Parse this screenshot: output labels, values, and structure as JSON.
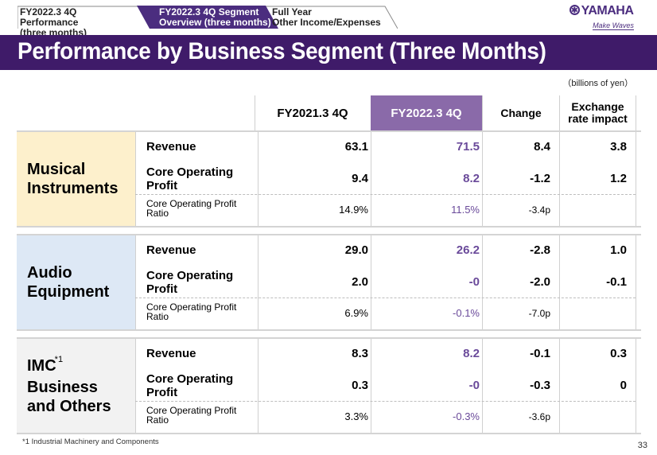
{
  "nav_tabs": [
    {
      "line1": "FY2022.3 4Q Performance",
      "line2": "(three months)",
      "active": false
    },
    {
      "line1": "FY2022.3 4Q Segment",
      "line2": "Overview (three months)",
      "active": true
    },
    {
      "line1": "Full Year",
      "line2": "Other Income/Expenses",
      "active": false
    }
  ],
  "logo": {
    "name": "YAMAHA",
    "tagline": "Make Waves",
    "icon": "tuning-fork-emblem-icon"
  },
  "title": "Performance by Business Segment (Three Months)",
  "unit": "（billions of yen）",
  "columns": {
    "prev": "FY2021.3 4Q",
    "curr": "FY2022.3 4Q",
    "change": "Change",
    "fx_line1": "Exchange",
    "fx_line2": "rate impact"
  },
  "row_labels": {
    "revenue": "Revenue",
    "cop_line1": "Core Operating",
    "cop_line2": "Profit",
    "ratio_line1": "Core Operating Profit",
    "ratio_line2": "Ratio"
  },
  "segments": [
    {
      "name_line1": "Musical",
      "name_line2": "Instruments",
      "footnote_mark": "",
      "bg": "#fdf0cc",
      "revenue": {
        "prev": "63.1",
        "curr": "71.5",
        "change": "8.4",
        "fx": "3.8"
      },
      "cop": {
        "prev": "9.4",
        "curr": "8.2",
        "change": "-1.2",
        "fx": "1.2"
      },
      "ratio": {
        "prev": "14.9%",
        "curr": "11.5%",
        "change": "-3.4p",
        "fx": ""
      }
    },
    {
      "name_line1": "Audio",
      "name_line2": "Equipment",
      "footnote_mark": "",
      "bg": "#dde8f5",
      "revenue": {
        "prev": "29.0",
        "curr": "26.2",
        "change": "-2.8",
        "fx": "1.0"
      },
      "cop": {
        "prev": "2.0",
        "curr": "-0",
        "change": "-2.0",
        "fx": "-0.1"
      },
      "ratio": {
        "prev": "6.9%",
        "curr": "-0.1%",
        "change": "-7.0p",
        "fx": ""
      }
    },
    {
      "name_line1": "IMC Business",
      "name_line2": "and Others",
      "footnote_mark": "*1",
      "bg": "#f2f2f2",
      "revenue": {
        "prev": "8.3",
        "curr": "8.2",
        "change": "-0.1",
        "fx": "0.3"
      },
      "cop": {
        "prev": "0.3",
        "curr": "-0",
        "change": "-0.3",
        "fx": "0"
      },
      "ratio": {
        "prev": "3.3%",
        "curr": "-0.3%",
        "change": "-3.6p",
        "fx": ""
      }
    }
  ],
  "footnote": "*1 Industrial Machinery and Components",
  "page_number": "33",
  "colors": {
    "title_bar": "#3f1b69",
    "current_col": "#8a6aa9",
    "current_text": "#6a4a9a"
  }
}
